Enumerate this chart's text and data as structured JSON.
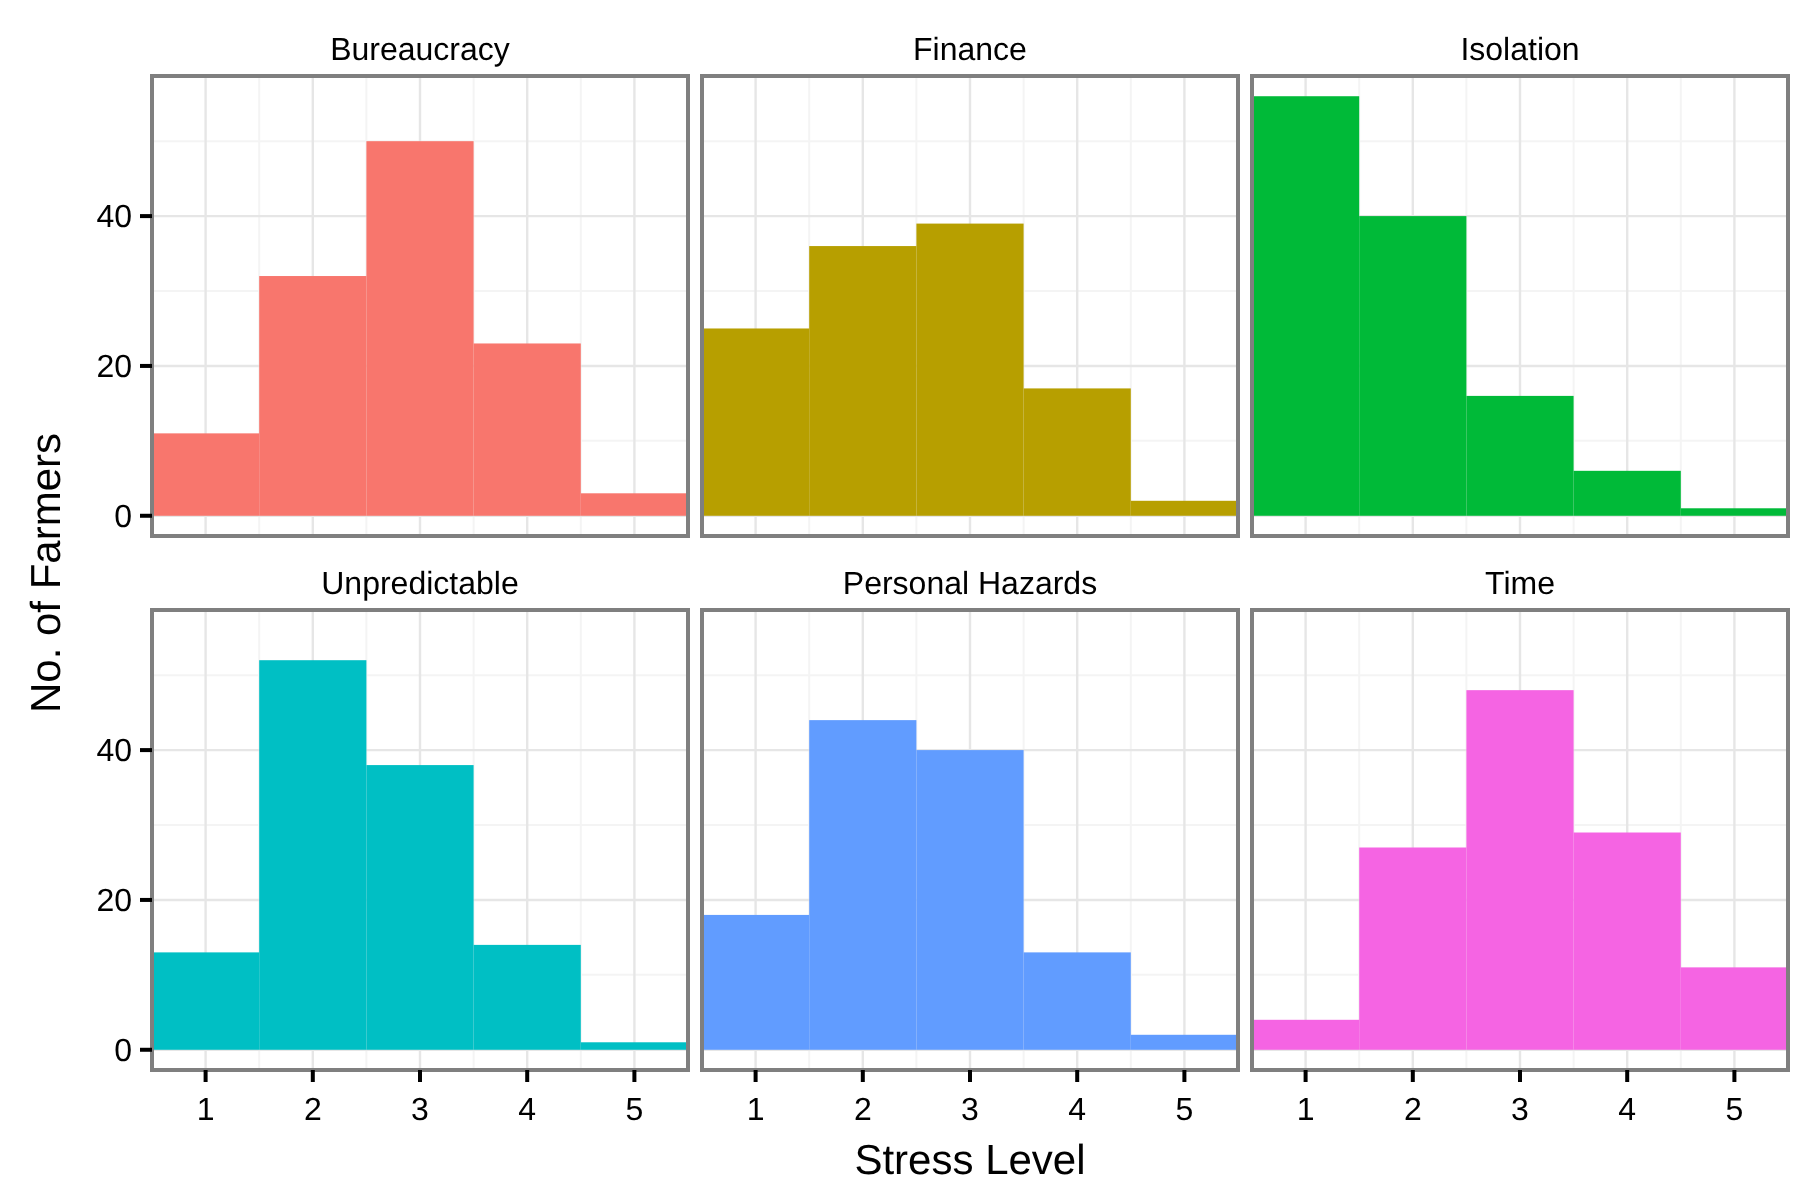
{
  "chart_data": [
    {
      "type": "histogram",
      "title": "Bureaucracy",
      "ylabel": "No. of Farmers",
      "bins": [
        0.5,
        1.5,
        2.5,
        3.5,
        4.5,
        5.5
      ],
      "values": [
        11,
        32,
        50,
        23,
        3
      ],
      "color": "#f8766d",
      "xlim": [
        0.5,
        5.5
      ],
      "ylim": [
        -2.7,
        58.7
      ],
      "xticks": [
        1,
        2,
        3,
        4,
        5
      ],
      "yticks": [
        0,
        20,
        40
      ],
      "grid": true,
      "tick_labels": "y"
    },
    {
      "type": "histogram",
      "title": "Finance",
      "bins": [
        0.5,
        1.5,
        2.5,
        3.5,
        4.5,
        5.5
      ],
      "values": [
        25,
        36,
        39,
        17,
        2
      ],
      "color": "#b79f00",
      "xlim": [
        0.5,
        5.5
      ],
      "ylim": [
        -2.7,
        58.7
      ],
      "xticks": [
        1,
        2,
        3,
        4,
        5
      ],
      "yticks": [
        0,
        20,
        40
      ],
      "grid": true,
      "tick_labels": false
    },
    {
      "type": "histogram",
      "title": "Isolation",
      "bins": [
        0.5,
        1.5,
        2.5,
        3.5,
        4.5,
        5.5
      ],
      "values": [
        56,
        40,
        16,
        6,
        1
      ],
      "color": "#00ba38",
      "xlim": [
        0.5,
        5.5
      ],
      "ylim": [
        -2.7,
        58.7
      ],
      "xticks": [
        1,
        2,
        3,
        4,
        5
      ],
      "yticks": [
        0,
        20,
        40
      ],
      "grid": true,
      "tick_labels": false
    },
    {
      "type": "histogram",
      "title": "Unpredictable",
      "bins": [
        0.5,
        1.5,
        2.5,
        3.5,
        4.5,
        5.5
      ],
      "values": [
        13,
        52,
        38,
        14,
        1
      ],
      "color": "#00bfc4",
      "xlim": [
        0.5,
        5.5
      ],
      "ylim": [
        -2.7,
        58.7
      ],
      "xticks": [
        1,
        2,
        3,
        4,
        5
      ],
      "yticks": [
        0,
        20,
        40
      ],
      "grid": true
    },
    {
      "type": "histogram",
      "title": "Personal Hazards",
      "xlabel": "Stress Level",
      "bins": [
        0.5,
        1.5,
        2.5,
        3.5,
        4.5,
        5.5
      ],
      "values": [
        18,
        44,
        40,
        13,
        2
      ],
      "color": "#619cff",
      "xlim": [
        0.5,
        5.5
      ],
      "ylim": [
        -2.7,
        58.7
      ],
      "xticks": [
        1,
        2,
        3,
        4,
        5
      ],
      "yticks": [
        0,
        20,
        40
      ],
      "grid": true,
      "tick_labels": "x"
    },
    {
      "type": "histogram",
      "title": "Time",
      "bins": [
        0.5,
        1.5,
        2.5,
        3.5,
        4.5,
        5.5
      ],
      "values": [
        4,
        27,
        48,
        29,
        11
      ],
      "color": "#f564e3",
      "xlim": [
        0.5,
        5.5
      ],
      "ylim": [
        -2.7,
        58.7
      ],
      "xticks": [
        1,
        2,
        3,
        4,
        5
      ],
      "yticks": [
        0,
        20,
        40
      ],
      "grid": true,
      "tick_labels": "x"
    }
  ]
}
